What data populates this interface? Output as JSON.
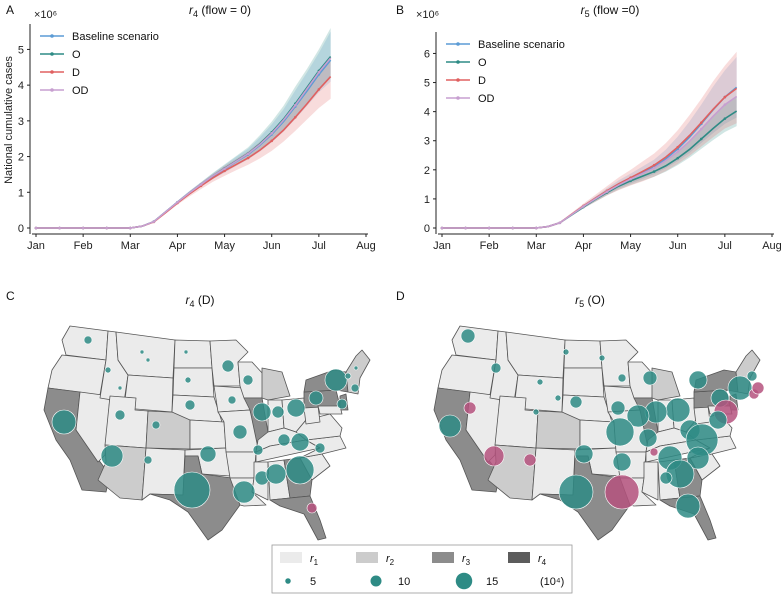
{
  "chart_data": [
    {
      "type": "line",
      "panel": "A",
      "title": "r4 (flow = 0)",
      "title_sub": "4",
      "title_rest": " (flow = 0)",
      "ylabel": "National cumulative cases",
      "y_multiplier": "×10⁶",
      "categories": [
        "Jan",
        "Feb",
        "Mar",
        "Apr",
        "May",
        "Jun",
        "Jul",
        "Aug"
      ],
      "ylim": [
        0,
        5.6
      ],
      "yticks": [
        0,
        1,
        2,
        3,
        4,
        5
      ],
      "x": [
        0,
        0.25,
        0.5,
        0.75,
        1.0,
        1.25,
        1.5,
        1.75,
        2.0,
        2.25,
        2.5,
        2.75,
        3.0,
        3.25,
        3.5,
        3.75,
        4.0,
        4.25,
        4.5,
        4.75,
        5.0,
        5.25,
        5.5,
        5.75,
        6.0,
        6.25,
        6.5,
        6.75
      ],
      "series": [
        {
          "name": "Baseline scenario",
          "color": "#5b9bd5",
          "values": [
            0,
            0,
            0,
            0,
            0,
            0,
            0,
            0,
            0,
            0.05,
            0.18,
            0.45,
            0.72,
            0.98,
            1.22,
            1.45,
            1.65,
            1.86,
            2.06,
            2.32,
            2.62,
            2.98,
            3.4,
            3.84,
            4.3,
            4.7,
            null,
            null
          ],
          "band": [
            [
              0,
              0
            ],
            [
              0,
              0
            ],
            [
              0,
              0
            ],
            [
              0,
              0
            ],
            [
              0,
              0
            ],
            [
              0,
              0
            ],
            [
              0,
              0
            ],
            [
              0,
              0
            ],
            [
              0,
              0
            ],
            [
              0.04,
              0.06
            ],
            [
              0.16,
              0.2
            ],
            [
              0.42,
              0.48
            ],
            [
              0.68,
              0.76
            ],
            [
              0.93,
              1.03
            ],
            [
              1.16,
              1.28
            ],
            [
              1.37,
              1.53
            ],
            [
              1.55,
              1.76
            ],
            [
              1.74,
              2.0
            ],
            [
              1.92,
              2.22
            ],
            [
              2.14,
              2.54
            ],
            [
              2.4,
              2.9
            ],
            [
              2.7,
              3.32
            ],
            [
              3.05,
              3.85
            ],
            [
              3.42,
              4.36
            ],
            [
              3.8,
              4.9
            ],
            [
              4.1,
              5.5
            ],
            [
              null,
              null
            ],
            [
              null,
              null
            ]
          ]
        },
        {
          "name": "O",
          "color": "#2e8b85",
          "values": [
            0,
            0,
            0,
            0,
            0,
            0,
            0,
            0,
            0,
            0.05,
            0.18,
            0.45,
            0.72,
            0.98,
            1.22,
            1.46,
            1.67,
            1.88,
            2.09,
            2.36,
            2.68,
            3.05,
            3.48,
            3.94,
            4.4,
            4.8,
            null,
            null
          ],
          "band": [
            [
              0,
              0
            ],
            [
              0,
              0
            ],
            [
              0,
              0
            ],
            [
              0,
              0
            ],
            [
              0,
              0
            ],
            [
              0,
              0
            ],
            [
              0,
              0
            ],
            [
              0,
              0
            ],
            [
              0,
              0
            ],
            [
              0.04,
              0.06
            ],
            [
              0.16,
              0.2
            ],
            [
              0.42,
              0.48
            ],
            [
              0.68,
              0.76
            ],
            [
              0.93,
              1.03
            ],
            [
              1.16,
              1.28
            ],
            [
              1.38,
              1.54
            ],
            [
              1.57,
              1.78
            ],
            [
              1.76,
              2.02
            ],
            [
              1.94,
              2.26
            ],
            [
              2.18,
              2.6
            ],
            [
              2.45,
              2.98
            ],
            [
              2.76,
              3.42
            ],
            [
              3.12,
              3.96
            ],
            [
              3.5,
              4.46
            ],
            [
              3.9,
              5.0
            ],
            [
              4.2,
              5.6
            ],
            [
              null,
              null
            ],
            [
              null,
              null
            ]
          ]
        },
        {
          "name": "D",
          "color": "#e06060",
          "values": [
            0,
            0,
            0,
            0,
            0,
            0,
            0,
            0,
            0,
            0.05,
            0.17,
            0.43,
            0.7,
            0.95,
            1.18,
            1.4,
            1.6,
            1.78,
            1.96,
            2.18,
            2.44,
            2.74,
            3.1,
            3.48,
            3.88,
            4.24,
            null,
            null
          ],
          "band": [
            [
              0,
              0
            ],
            [
              0,
              0
            ],
            [
              0,
              0
            ],
            [
              0,
              0
            ],
            [
              0,
              0
            ],
            [
              0,
              0
            ],
            [
              0,
              0
            ],
            [
              0,
              0
            ],
            [
              0,
              0
            ],
            [
              0.04,
              0.06
            ],
            [
              0.15,
              0.19
            ],
            [
              0.4,
              0.46
            ],
            [
              0.65,
              0.75
            ],
            [
              0.88,
              1.02
            ],
            [
              1.09,
              1.27
            ],
            [
              1.29,
              1.51
            ],
            [
              1.46,
              1.74
            ],
            [
              1.62,
              1.94
            ],
            [
              1.77,
              2.15
            ],
            [
              1.95,
              2.41
            ],
            [
              2.16,
              2.72
            ],
            [
              2.42,
              3.06
            ],
            [
              2.72,
              3.48
            ],
            [
              3.04,
              3.92
            ],
            [
              3.36,
              4.38
            ],
            [
              3.62,
              4.82
            ],
            [
              null,
              null
            ],
            [
              null,
              null
            ]
          ]
        },
        {
          "name": "OD",
          "color": "#c79fd0",
          "values": [
            0,
            0,
            0,
            0,
            0,
            0,
            0,
            0,
            0,
            0.05,
            0.18,
            0.45,
            0.72,
            0.98,
            1.22,
            1.46,
            1.66,
            1.87,
            2.08,
            2.34,
            2.65,
            3.02,
            3.44,
            3.9,
            4.36,
            4.76,
            null,
            null
          ],
          "band": null
        }
      ]
    },
    {
      "type": "line",
      "panel": "B",
      "title": "r5 (flow =0)",
      "title_sub": "5",
      "title_rest": " (flow  =0)",
      "ylabel": "",
      "y_multiplier": "×10⁶",
      "categories": [
        "Jan",
        "Feb",
        "Mar",
        "Apr",
        "May",
        "Jun",
        "Jul",
        "Aug"
      ],
      "ylim": [
        0,
        6.6
      ],
      "yticks": [
        0,
        1,
        2,
        3,
        4,
        5,
        6
      ],
      "x": [
        0,
        0.25,
        0.5,
        0.75,
        1.0,
        1.25,
        1.5,
        1.75,
        2.0,
        2.25,
        2.5,
        2.75,
        3.0,
        3.25,
        3.5,
        3.75,
        4.0,
        4.25,
        4.5,
        4.75,
        5.0,
        5.25,
        5.5,
        5.75,
        6.0,
        6.25,
        6.5,
        6.75
      ],
      "series": [
        {
          "name": "Baseline scenario",
          "color": "#5b9bd5",
          "values": [
            0,
            0,
            0,
            0,
            0,
            0,
            0,
            0,
            0,
            0.05,
            0.18,
            0.46,
            0.74,
            1.0,
            1.26,
            1.5,
            1.7,
            1.9,
            2.1,
            2.38,
            2.72,
            3.12,
            3.58,
            4.06,
            4.5,
            4.84,
            null,
            null
          ],
          "band": [
            [
              0,
              0
            ],
            [
              0,
              0
            ],
            [
              0,
              0
            ],
            [
              0,
              0
            ],
            [
              0,
              0
            ],
            [
              0,
              0
            ],
            [
              0,
              0
            ],
            [
              0,
              0
            ],
            [
              0,
              0
            ],
            [
              0.04,
              0.06
            ],
            [
              0.16,
              0.2
            ],
            [
              0.42,
              0.5
            ],
            [
              0.68,
              0.8
            ],
            [
              0.92,
              1.08
            ],
            [
              1.15,
              1.37
            ],
            [
              1.36,
              1.64
            ],
            [
              1.53,
              1.87
            ],
            [
              1.69,
              2.11
            ],
            [
              1.85,
              2.35
            ],
            [
              2.06,
              2.7
            ],
            [
              2.3,
              3.14
            ],
            [
              2.58,
              3.66
            ],
            [
              2.92,
              4.24
            ],
            [
              3.26,
              4.86
            ],
            [
              3.58,
              5.42
            ],
            [
              3.8,
              5.88
            ],
            [
              null,
              null
            ],
            [
              null,
              null
            ]
          ]
        },
        {
          "name": "O",
          "color": "#2e8b85",
          "values": [
            0,
            0,
            0,
            0,
            0,
            0,
            0,
            0,
            0,
            0.05,
            0.18,
            0.45,
            0.72,
            0.98,
            1.22,
            1.44,
            1.62,
            1.78,
            1.94,
            2.14,
            2.4,
            2.7,
            3.06,
            3.42,
            3.76,
            4.02,
            null,
            null
          ],
          "band": [
            [
              0,
              0
            ],
            [
              0,
              0
            ],
            [
              0,
              0
            ],
            [
              0,
              0
            ],
            [
              0,
              0
            ],
            [
              0,
              0
            ],
            [
              0,
              0
            ],
            [
              0,
              0
            ],
            [
              0,
              0
            ],
            [
              0.04,
              0.06
            ],
            [
              0.16,
              0.2
            ],
            [
              0.42,
              0.48
            ],
            [
              0.67,
              0.77
            ],
            [
              0.9,
              1.06
            ],
            [
              1.12,
              1.32
            ],
            [
              1.32,
              1.56
            ],
            [
              1.48,
              1.76
            ],
            [
              1.62,
              1.94
            ],
            [
              1.76,
              2.12
            ],
            [
              1.94,
              2.34
            ],
            [
              2.16,
              2.64
            ],
            [
              2.42,
              2.98
            ],
            [
              2.72,
              3.4
            ],
            [
              3.02,
              3.82
            ],
            [
              3.3,
              4.22
            ],
            [
              3.5,
              4.54
            ],
            [
              null,
              null
            ],
            [
              null,
              null
            ]
          ]
        },
        {
          "name": "D",
          "color": "#e06060",
          "values": [
            0,
            0,
            0,
            0,
            0,
            0,
            0,
            0,
            0,
            0.05,
            0.18,
            0.47,
            0.76,
            1.02,
            1.28,
            1.52,
            1.73,
            1.94,
            2.16,
            2.44,
            2.78,
            3.18,
            3.62,
            4.08,
            4.5,
            4.8,
            null,
            null
          ],
          "band": [
            [
              0,
              0
            ],
            [
              0,
              0
            ],
            [
              0,
              0
            ],
            [
              0,
              0
            ],
            [
              0,
              0
            ],
            [
              0,
              0
            ],
            [
              0,
              0
            ],
            [
              0,
              0
            ],
            [
              0,
              0
            ],
            [
              0.04,
              0.06
            ],
            [
              0.16,
              0.2
            ],
            [
              0.42,
              0.52
            ],
            [
              0.68,
              0.84
            ],
            [
              0.9,
              1.14
            ],
            [
              1.12,
              1.44
            ],
            [
              1.3,
              1.74
            ],
            [
              1.46,
              2.0
            ],
            [
              1.6,
              2.28
            ],
            [
              1.76,
              2.56
            ],
            [
              1.96,
              2.92
            ],
            [
              2.2,
              3.36
            ],
            [
              2.48,
              3.88
            ],
            [
              2.8,
              4.44
            ],
            [
              3.12,
              5.04
            ],
            [
              3.42,
              5.58
            ],
            [
              3.6,
              6.06
            ],
            [
              null,
              null
            ],
            [
              null,
              null
            ]
          ]
        },
        {
          "name": "OD",
          "color": "#c79fd0",
          "values": [
            0,
            0,
            0,
            0,
            0,
            0,
            0,
            0,
            0,
            0.05,
            0.18,
            0.46,
            0.74,
            1.0,
            1.25,
            1.48,
            1.68,
            1.87,
            2.06,
            2.32,
            2.62,
            2.98,
            3.4,
            3.84,
            4.24,
            4.52,
            null,
            null
          ],
          "band": null
        }
      ]
    }
  ],
  "maps": [
    {
      "panel": "C",
      "title_sub": "4",
      "title_rest": " (D)"
    },
    {
      "panel": "D",
      "title_sub": "5",
      "title_rest": " (O)"
    }
  ],
  "map_legend": {
    "fills": [
      {
        "label": "r",
        "sub": "1",
        "color": "#ebebeb"
      },
      {
        "label": "r",
        "sub": "2",
        "color": "#cccccc"
      },
      {
        "label": "r",
        "sub": "3",
        "color": "#8c8c8c"
      },
      {
        "label": "r",
        "sub": "4",
        "color": "#5c5c5c"
      }
    ],
    "sizes": [
      {
        "label": "5",
        "value": 5
      },
      {
        "label": "10",
        "value": 10
      },
      {
        "label": "15",
        "value": 15
      }
    ],
    "unit": "(10⁴)"
  },
  "colors": {
    "teal": "#2e8b85",
    "red": "#e06060",
    "blue": "#5b9bd5",
    "mauve": "#b5527e"
  }
}
